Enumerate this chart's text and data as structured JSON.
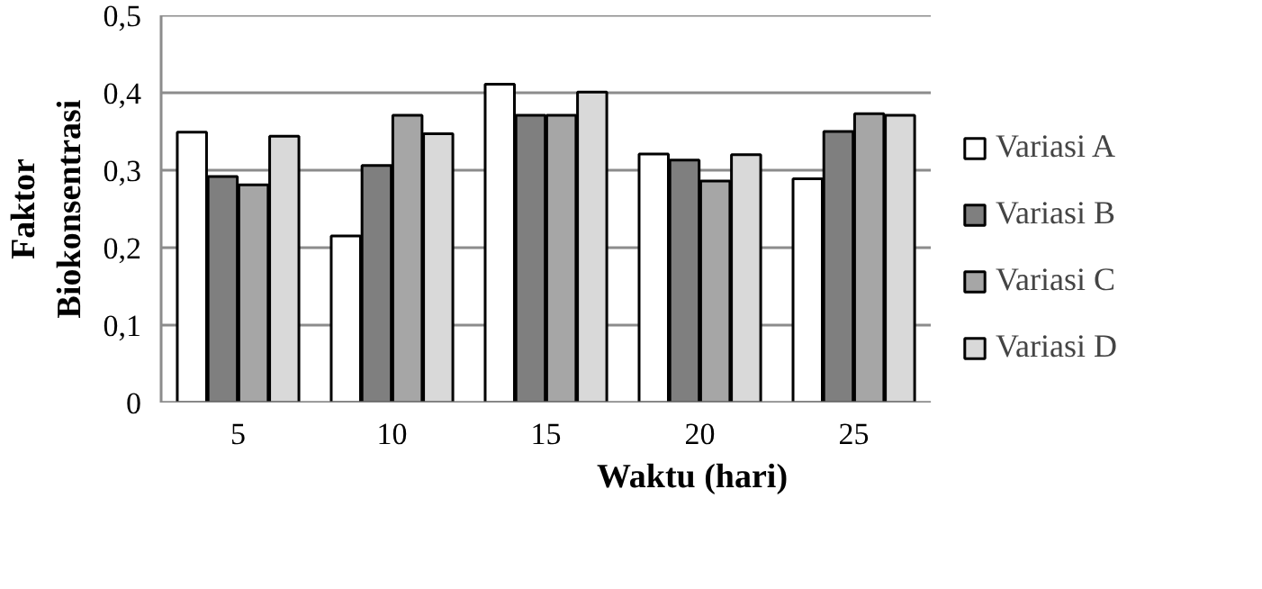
{
  "chart_data": {
    "type": "bar",
    "xlabel": "Waktu (hari)",
    "ylabel": "Faktor Biokonsentrasi",
    "categories": [
      "5",
      "10",
      "15",
      "20",
      "25"
    ],
    "series": [
      {
        "name": "Variasi A",
        "color": "#ffffff",
        "values": [
          0.349,
          0.215,
          0.411,
          0.321,
          0.289
        ]
      },
      {
        "name": "Variasi B",
        "color": "#7f7f7f",
        "values": [
          0.292,
          0.306,
          0.371,
          0.313,
          0.35
        ]
      },
      {
        "name": "Variasi C",
        "color": "#a6a6a6",
        "values": [
          0.281,
          0.371,
          0.371,
          0.286,
          0.373
        ]
      },
      {
        "name": "Variasi D",
        "color": "#d9d9d9",
        "values": [
          0.344,
          0.347,
          0.401,
          0.32,
          0.371
        ]
      }
    ],
    "ylim": [
      0,
      0.5
    ],
    "yticks": [
      {
        "value": 0,
        "label": "0"
      },
      {
        "value": 0.1,
        "label": "0,1"
      },
      {
        "value": 0.2,
        "label": "0,2"
      },
      {
        "value": 0.3,
        "label": "0,3"
      },
      {
        "value": 0.4,
        "label": "0,4"
      },
      {
        "value": 0.5,
        "label": "0,5"
      }
    ],
    "grid": "y",
    "legend": "right"
  }
}
